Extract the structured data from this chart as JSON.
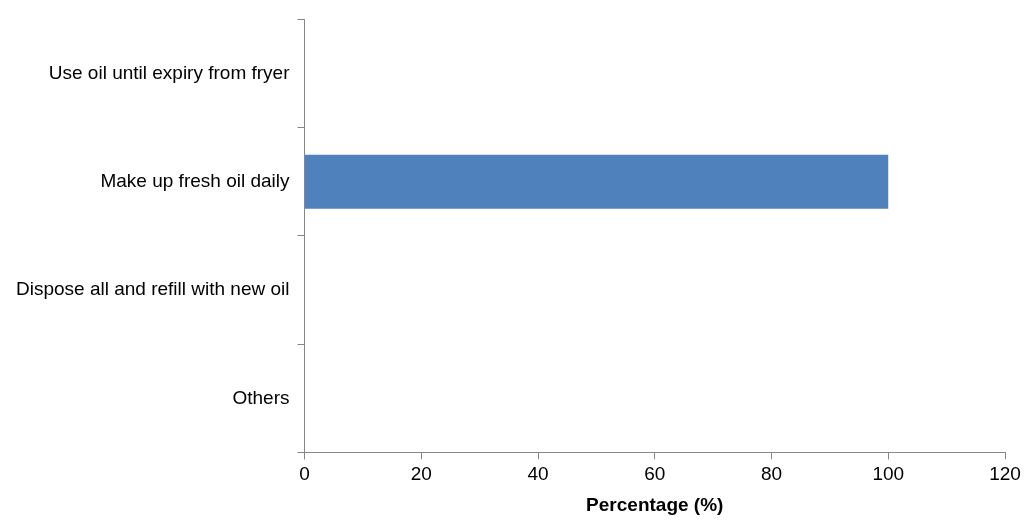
{
  "chart_data": {
    "type": "bar",
    "orientation": "horizontal",
    "xlabel": "Percentage (%)",
    "categories": [
      "Use oil until expiry from fryer",
      "Make up fresh oil daily",
      "Dispose all and refill with new oil",
      "Others"
    ],
    "values": [
      0,
      100,
      0,
      0
    ],
    "color": "#4f81bd",
    "xlim": [
      0,
      120
    ],
    "xticks": [
      0,
      20,
      40,
      60,
      80,
      100,
      120
    ]
  }
}
